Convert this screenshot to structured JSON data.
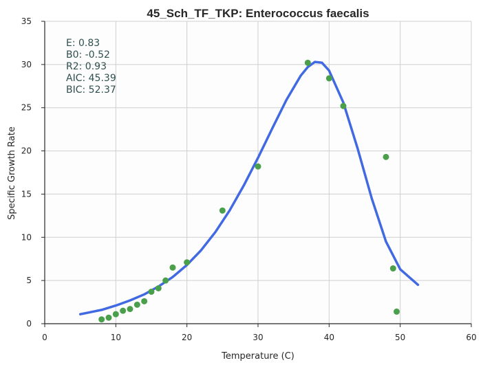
{
  "chart_data": {
    "type": "scatter",
    "title": "45_Sch_TF_TKP: Enterococcus faecalis",
    "xlabel": "Temperature (C)",
    "ylabel": "Specific Growth Rate",
    "xlim": [
      0,
      60
    ],
    "ylim": [
      0,
      35
    ],
    "x_ticks": [
      "0",
      "10",
      "20",
      "30",
      "40",
      "50",
      "60"
    ],
    "y_ticks": [
      "0",
      "5",
      "10",
      "15",
      "20",
      "25",
      "30",
      "35"
    ],
    "grid": true,
    "stats": [
      "E:  0.83",
      "B0:  -0.52",
      "R2:  0.93",
      "AIC: 45.39",
      "BIC: 52.37"
    ],
    "series": [
      {
        "kind": "points",
        "color": "#4a9f4a",
        "x": [
          8,
          9,
          10,
          11,
          12,
          13,
          14,
          15,
          16,
          17,
          18,
          20,
          25,
          30,
          37,
          40,
          42,
          48,
          49,
          49.5
        ],
        "y": [
          0.5,
          0.7,
          1.1,
          1.5,
          1.7,
          2.2,
          2.6,
          3.7,
          4.1,
          5.0,
          6.5,
          7.1,
          13.1,
          18.2,
          30.2,
          28.4,
          25.2,
          19.3,
          6.4,
          1.4
        ]
      },
      {
        "kind": "fit-line",
        "color": "#4169e1",
        "x": [
          5,
          8,
          10,
          12,
          14,
          16,
          18,
          20,
          22,
          24,
          26,
          28,
          30,
          32,
          34,
          36,
          37,
          38,
          39,
          40,
          42,
          44,
          46,
          48,
          50,
          52.5
        ],
        "y": [
          1.1,
          1.6,
          2.1,
          2.7,
          3.4,
          4.3,
          5.4,
          6.8,
          8.5,
          10.6,
          13.1,
          16.0,
          19.2,
          22.6,
          25.9,
          28.7,
          29.7,
          30.3,
          30.2,
          29.3,
          25.6,
          20.3,
          14.5,
          9.5,
          6.3,
          4.5
        ]
      }
    ]
  }
}
